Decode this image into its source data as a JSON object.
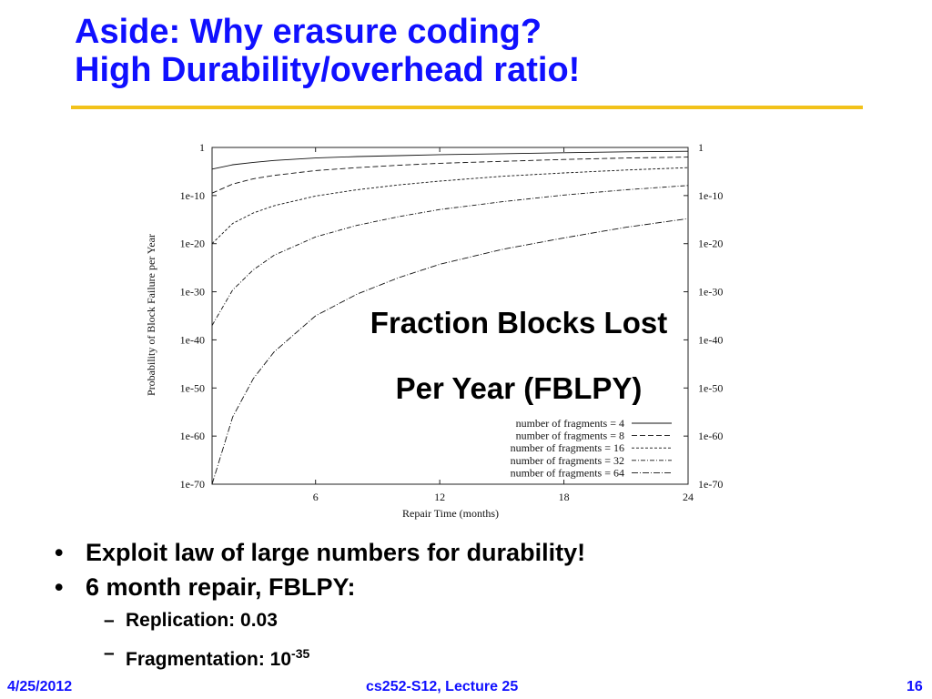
{
  "title": {
    "line1": "Aside: Why erasure coding?",
    "line2": "High Durability/overhead ratio!"
  },
  "overlay": {
    "line1": "Fraction Blocks Lost",
    "line2": "Per Year (FBLPY)"
  },
  "chart_data": {
    "type": "line",
    "xlabel": "Repair Time (months)",
    "ylabel": "Probability of Block Failure per Year",
    "xlim": [
      1,
      24
    ],
    "ylim": [
      -70,
      0
    ],
    "y_scale": "log10",
    "x_ticks": [
      "6",
      "12",
      "18",
      "24"
    ],
    "x_tick_values": [
      6,
      12,
      18,
      24
    ],
    "y_ticks": [
      "1",
      "1e-10",
      "1e-20",
      "1e-30",
      "1e-40",
      "1e-50",
      "1e-60",
      "1e-70"
    ],
    "y_tick_exponents": [
      0,
      -10,
      -20,
      -30,
      -40,
      -50,
      -60,
      -70
    ],
    "grid": false,
    "legend_position": "bottom-right",
    "x": [
      1,
      2,
      3,
      4,
      6,
      8,
      10,
      12,
      15,
      18,
      21,
      24
    ],
    "series": [
      {
        "name": "number of fragments = 4",
        "values": [
          -4.5,
          -3.6,
          -3.1,
          -2.7,
          -2.2,
          -1.9,
          -1.7,
          -1.5,
          -1.3,
          -1.1,
          -0.9,
          -0.8
        ]
      },
      {
        "name": "number of fragments = 8",
        "values": [
          -9.5,
          -7.6,
          -6.5,
          -5.8,
          -4.8,
          -4.2,
          -3.7,
          -3.3,
          -2.9,
          -2.5,
          -2.2,
          -2.0
        ]
      },
      {
        "name": "number of fragments = 16",
        "values": [
          -20.0,
          -15.8,
          -13.6,
          -12.1,
          -10.1,
          -8.8,
          -7.8,
          -7.0,
          -6.0,
          -5.3,
          -4.7,
          -4.2
        ]
      },
      {
        "name": "number of fragments = 32",
        "values": [
          -37.0,
          -29.6,
          -25.4,
          -22.4,
          -18.6,
          -16.2,
          -14.4,
          -12.9,
          -11.3,
          -9.9,
          -8.8,
          -7.9
        ]
      },
      {
        "name": "number of fragments = 64",
        "values": [
          -70.0,
          -56.0,
          -48.0,
          -42.5,
          -35.0,
          -30.5,
          -27.1,
          -24.3,
          -21.2,
          -18.8,
          -16.6,
          -14.8
        ]
      }
    ]
  },
  "bullets": [
    {
      "text": "Exploit law of large numbers for durability!",
      "symbol": "•"
    },
    {
      "text": "6 month repair, FBLPY:",
      "symbol": "•"
    }
  ],
  "subbullets": [
    {
      "text": "Replication: 0.03",
      "symbol": "–"
    },
    {
      "text_base": "Fragmentation: 10",
      "text_sup": "-35",
      "symbol": "–"
    }
  ],
  "footer": {
    "date": "4/25/2012",
    "course": "cs252-S12, Lecture 25",
    "page": "16"
  },
  "colors": {
    "title": "#1010ff",
    "rule": "#f2c21a",
    "footer": "#1010ff"
  }
}
